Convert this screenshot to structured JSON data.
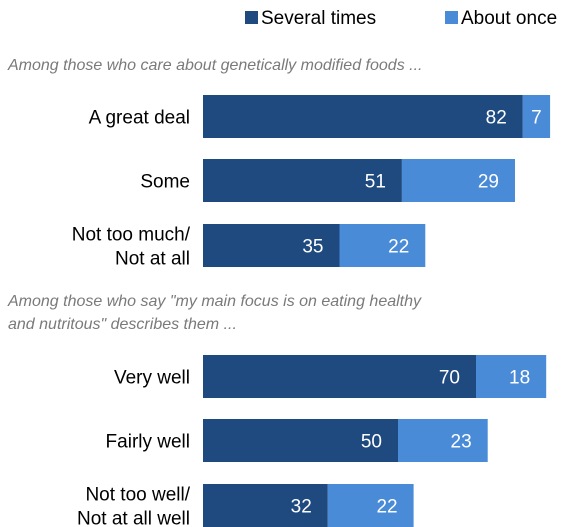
{
  "chart_data": {
    "type": "bar",
    "orientation": "horizontal",
    "stacked": true,
    "legend": {
      "position": "top-right",
      "items": [
        {
          "name": "Several times",
          "color": "#1f4a7f"
        },
        {
          "name": "About once",
          "color": "#4a8bd8"
        }
      ]
    },
    "series_names": [
      "Several times",
      "About once"
    ],
    "colors": [
      "#1f4a7f",
      "#4a8bd8"
    ],
    "xlim": [
      0,
      100
    ],
    "groups": [
      {
        "title_lines": [
          "Among those who care about genetically modified foods ..."
        ],
        "rows": [
          {
            "label_lines": [
              "A great deal"
            ],
            "values": [
              82,
              7
            ]
          },
          {
            "label_lines": [
              "Some"
            ],
            "values": [
              51,
              29
            ]
          },
          {
            "label_lines": [
              "Not too much/",
              "Not at all"
            ],
            "values": [
              35,
              22
            ]
          }
        ]
      },
      {
        "title_lines": [
          "Among those who say \"my main focus is on eating healthy",
          "and nutritous\" describes them ..."
        ],
        "rows": [
          {
            "label_lines": [
              "Very well"
            ],
            "values": [
              70,
              18
            ]
          },
          {
            "label_lines": [
              "Fairly well"
            ],
            "values": [
              50,
              23
            ]
          },
          {
            "label_lines": [
              "Not too well/",
              "Not at all well"
            ],
            "values": [
              32,
              22
            ]
          }
        ]
      }
    ]
  }
}
